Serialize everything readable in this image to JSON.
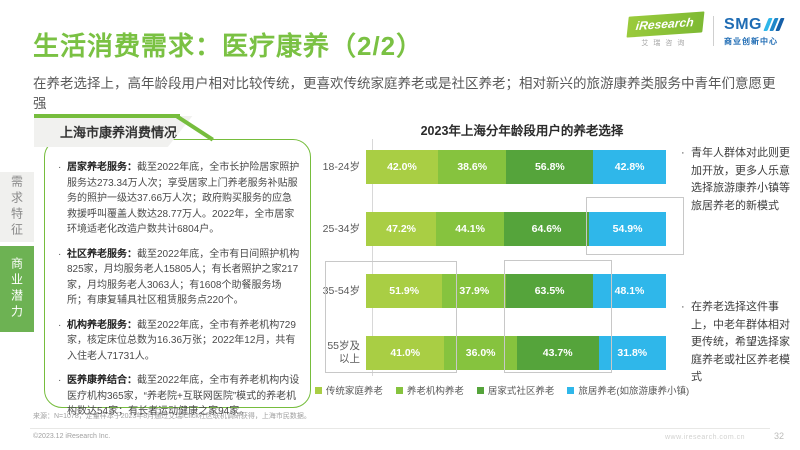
{
  "header": {
    "title": "生活消费需求：医疗康养（2/2）",
    "subtitle": "在养老选择上，高年龄段用户相对比较传统，更喜欢传统家庭养老或是社区养老；相对新兴的旅游康养类服务中青年们意愿更强",
    "logos": {
      "iresearch": "iResearch",
      "iresearch_sub": "艾瑞咨询",
      "smg": "SMG",
      "smg_sub": "商业创新中心"
    }
  },
  "sidebar": {
    "tabs": [
      {
        "label": "需求特征",
        "active": false
      },
      {
        "label": "商业潜力",
        "active": true
      }
    ]
  },
  "info_panel": {
    "title": "上海市康养消费情况",
    "bullets": [
      {
        "label": "居家养老服务：",
        "text": "截至2022年底，全市长护险居家照护服务达273.34万人次；享受居家上门养老服务补贴服务的照护一级达37.66万人次；政府购买服务的应急救援呼叫覆盖人数达28.77万人。2022年，全市居家环境适老化改造户数共计6804户。"
      },
      {
        "label": "社区养老服务：",
        "text": "截至2022年底，全市有日间照护机构825家，月均服务老人15805人；有长者照护之家217家，月均服务老人3063人；有1608个助餐服务场所；有康复辅具社区租赁服务点220个。"
      },
      {
        "label": "机构养老服务：",
        "text": "截至2022年底，全市有养老机构729家，核定床位总数为16.36万张；2022年12月，共有入住老人71731人。"
      },
      {
        "label": "医养康养结合：",
        "text": "截至2022年底，全市有养老机构内设医疗机构365家，“养老院+互联网医院”模式的养老机构数达54家；有长者运动健康之家94家。"
      }
    ]
  },
  "chart_data": {
    "type": "bar",
    "orientation": "horizontal-stacked-normalized",
    "title": "2023年上海分年龄段用户的养老选择",
    "unit": "%",
    "categories": [
      "18-24岁",
      "25-34岁",
      "35-54岁",
      "55岁及以上"
    ],
    "series": [
      {
        "name": "传统家庭养老",
        "color": "#a9ce44",
        "values": [
          42.0,
          47.2,
          51.9,
          41.0
        ]
      },
      {
        "name": "养老机构养老",
        "color": "#86c33e",
        "values": [
          38.6,
          44.1,
          37.9,
          36.0
        ]
      },
      {
        "name": "居家式社区养老",
        "color": "#55a43b",
        "values": [
          56.8,
          64.6,
          63.5,
          43.7
        ]
      },
      {
        "name": "旅居养老(如旅游康养小镇)",
        "color": "#2fb7ea",
        "values": [
          42.8,
          54.9,
          48.1,
          31.8
        ]
      }
    ],
    "legend_position": "bottom",
    "grid": false
  },
  "notes": [
    "青年人群体对此则更加开放，更多人乐意选择旅游康养小镇等旅居养老的新模式",
    "在养老选择这件事上，中老年群体相对更传统，希望选择家庭养老或社区养老模式"
  ],
  "footer": {
    "source": "来源：N=1078，定量样本于2023年8月通过艾瑞iClick社区联机调研获得，上海市民数据。",
    "copyright": "©2023.12 iResearch Inc.",
    "watermark": "www.iresearch.com.cn",
    "page": "32"
  },
  "colors": {
    "accent_green": "#7ac143",
    "tab_green": "#6db253",
    "highlight_border": "#c8c8c8"
  }
}
